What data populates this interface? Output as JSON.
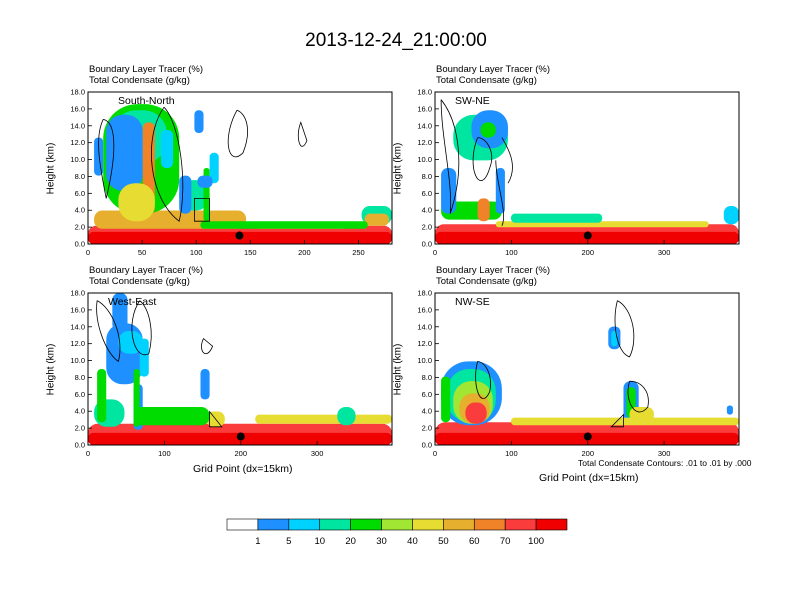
{
  "title": "2013-12-24_21:00:00",
  "field1_label": "Boundary Layer Tracer    (%)",
  "field2_label": "Total Condensate    (g/kg)",
  "ylabel": "Height (km)",
  "xlabel": "Grid Point (dx=15km)",
  "contour_note": "Total Condensate Contours: .01 to .01 by .000",
  "colors": [
    "#ffffff",
    "#1e90ff",
    "#00d2ff",
    "#00e6a0",
    "#00dc00",
    "#a0e632",
    "#e6dc32",
    "#e6af2d",
    "#f08228",
    "#fa3c3c",
    "#f00000"
  ],
  "colorbar": {
    "labels": [
      "1",
      "5",
      "10",
      "20",
      "30",
      "40",
      "50",
      "60",
      "70",
      "100"
    ]
  },
  "chart_data": [
    {
      "type": "heatmap",
      "title": "South-North",
      "xlim": [
        0,
        281
      ],
      "ylim": [
        0,
        18
      ],
      "x_ticks": [
        "0",
        "50",
        "100",
        "150",
        "200",
        "250"
      ],
      "x_tick_values": [
        0,
        50,
        100,
        150,
        200,
        250
      ],
      "y_ticks": [
        "0.0",
        "2.0",
        "4.0",
        "6.0",
        "8.0",
        "10.0",
        "12.0",
        "14.0",
        "16.0",
        "18.0"
      ],
      "marker": {
        "x": 140,
        "y": 1.0
      },
      "show_xlabel": false,
      "show_note": false
    },
    {
      "type": "heatmap",
      "title": "SW-NE",
      "xlim": [
        0,
        398
      ],
      "ylim": [
        0,
        18
      ],
      "x_ticks": [
        "0",
        "100",
        "200",
        "300"
      ],
      "x_tick_values": [
        0,
        100,
        200,
        300
      ],
      "y_ticks": [
        "0.0",
        "2.0",
        "4.0",
        "6.0",
        "8.0",
        "10.0",
        "12.0",
        "14.0",
        "16.0",
        "18.0"
      ],
      "marker": {
        "x": 200,
        "y": 1.0
      },
      "show_xlabel": false,
      "show_note": false
    },
    {
      "type": "heatmap",
      "title": "West-East",
      "xlim": [
        0,
        398
      ],
      "ylim": [
        0,
        18
      ],
      "x_ticks": [
        "0",
        "100",
        "200",
        "300"
      ],
      "x_tick_values": [
        0,
        100,
        200,
        300
      ],
      "y_ticks": [
        "0.0",
        "2.0",
        "4.0",
        "6.0",
        "8.0",
        "10.0",
        "12.0",
        "14.0",
        "16.0",
        "18.0"
      ],
      "marker": {
        "x": 200,
        "y": 1.0
      },
      "show_xlabel": true,
      "show_note": false
    },
    {
      "type": "heatmap",
      "title": "NW-SE",
      "xlim": [
        0,
        398
      ],
      "ylim": [
        0,
        18
      ],
      "x_ticks": [
        "0",
        "100",
        "200",
        "300"
      ],
      "x_tick_values": [
        0,
        100,
        200,
        300
      ],
      "y_ticks": [
        "0.0",
        "2.0",
        "4.0",
        "6.0",
        "8.0",
        "10.0",
        "12.0",
        "14.0",
        "16.0",
        "18.0"
      ],
      "marker": {
        "x": 200,
        "y": 1.0
      },
      "show_xlabel": true,
      "show_note": true
    }
  ]
}
